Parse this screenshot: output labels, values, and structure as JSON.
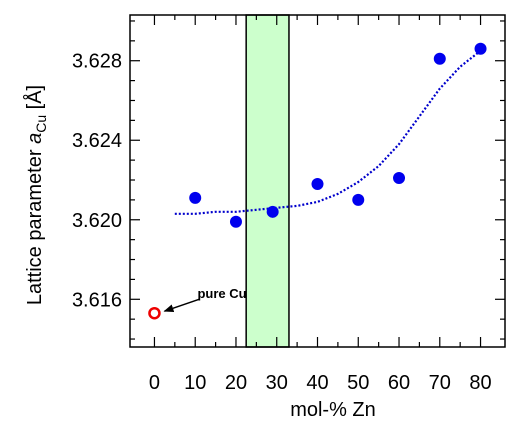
{
  "chart_data": {
    "type": "scatter",
    "title": "",
    "xlabel": "mol-% Zn",
    "ylabel_main": "Lattice parameter ",
    "ylabel_italic": "a",
    "ylabel_sub": "Cu",
    "ylabel_unit": " [Å]",
    "xlim": [
      -6,
      86
    ],
    "ylim": [
      3.6136,
      3.6303
    ],
    "xticks": [
      0,
      10,
      20,
      30,
      40,
      50,
      60,
      70,
      80
    ],
    "xtick_labels": [
      "0",
      "10",
      "20",
      "30",
      "40",
      "50",
      "60",
      "70",
      "80"
    ],
    "yticks": [
      3.616,
      3.62,
      3.624,
      3.628
    ],
    "ytick_labels": [
      "3.616",
      "3.620",
      "3.624",
      "3.628"
    ],
    "grid": false,
    "highlight_band": {
      "x": [
        22.5,
        33
      ],
      "color": "#ccffcc"
    },
    "series": [
      {
        "marker": "filled-circle",
        "color": "#0000ee",
        "x": [
          10,
          20,
          29,
          40,
          50,
          60,
          70,
          80
        ],
        "y": [
          3.6211,
          3.6199,
          3.6204,
          3.6218,
          3.621,
          3.6221,
          3.6281,
          3.6286
        ]
      },
      {
        "marker": "open-circle",
        "color": "#ee0000",
        "x": [
          0
        ],
        "y": [
          3.6153
        ]
      }
    ],
    "trend": {
      "style": "dotted",
      "color": "#0000cc",
      "x": [
        5,
        10,
        15,
        20,
        25,
        30,
        35,
        40,
        45,
        50,
        55,
        60,
        65,
        70,
        75,
        80
      ],
      "y": [
        3.6203,
        3.6203,
        3.6204,
        3.6204,
        3.6205,
        3.6206,
        3.6207,
        3.6209,
        3.6213,
        3.6219,
        3.6227,
        3.6238,
        3.6252,
        3.6266,
        3.6277,
        3.6285
      ]
    },
    "annotation": {
      "text": "pure Cu",
      "x": 0,
      "y": 3.6153
    }
  }
}
